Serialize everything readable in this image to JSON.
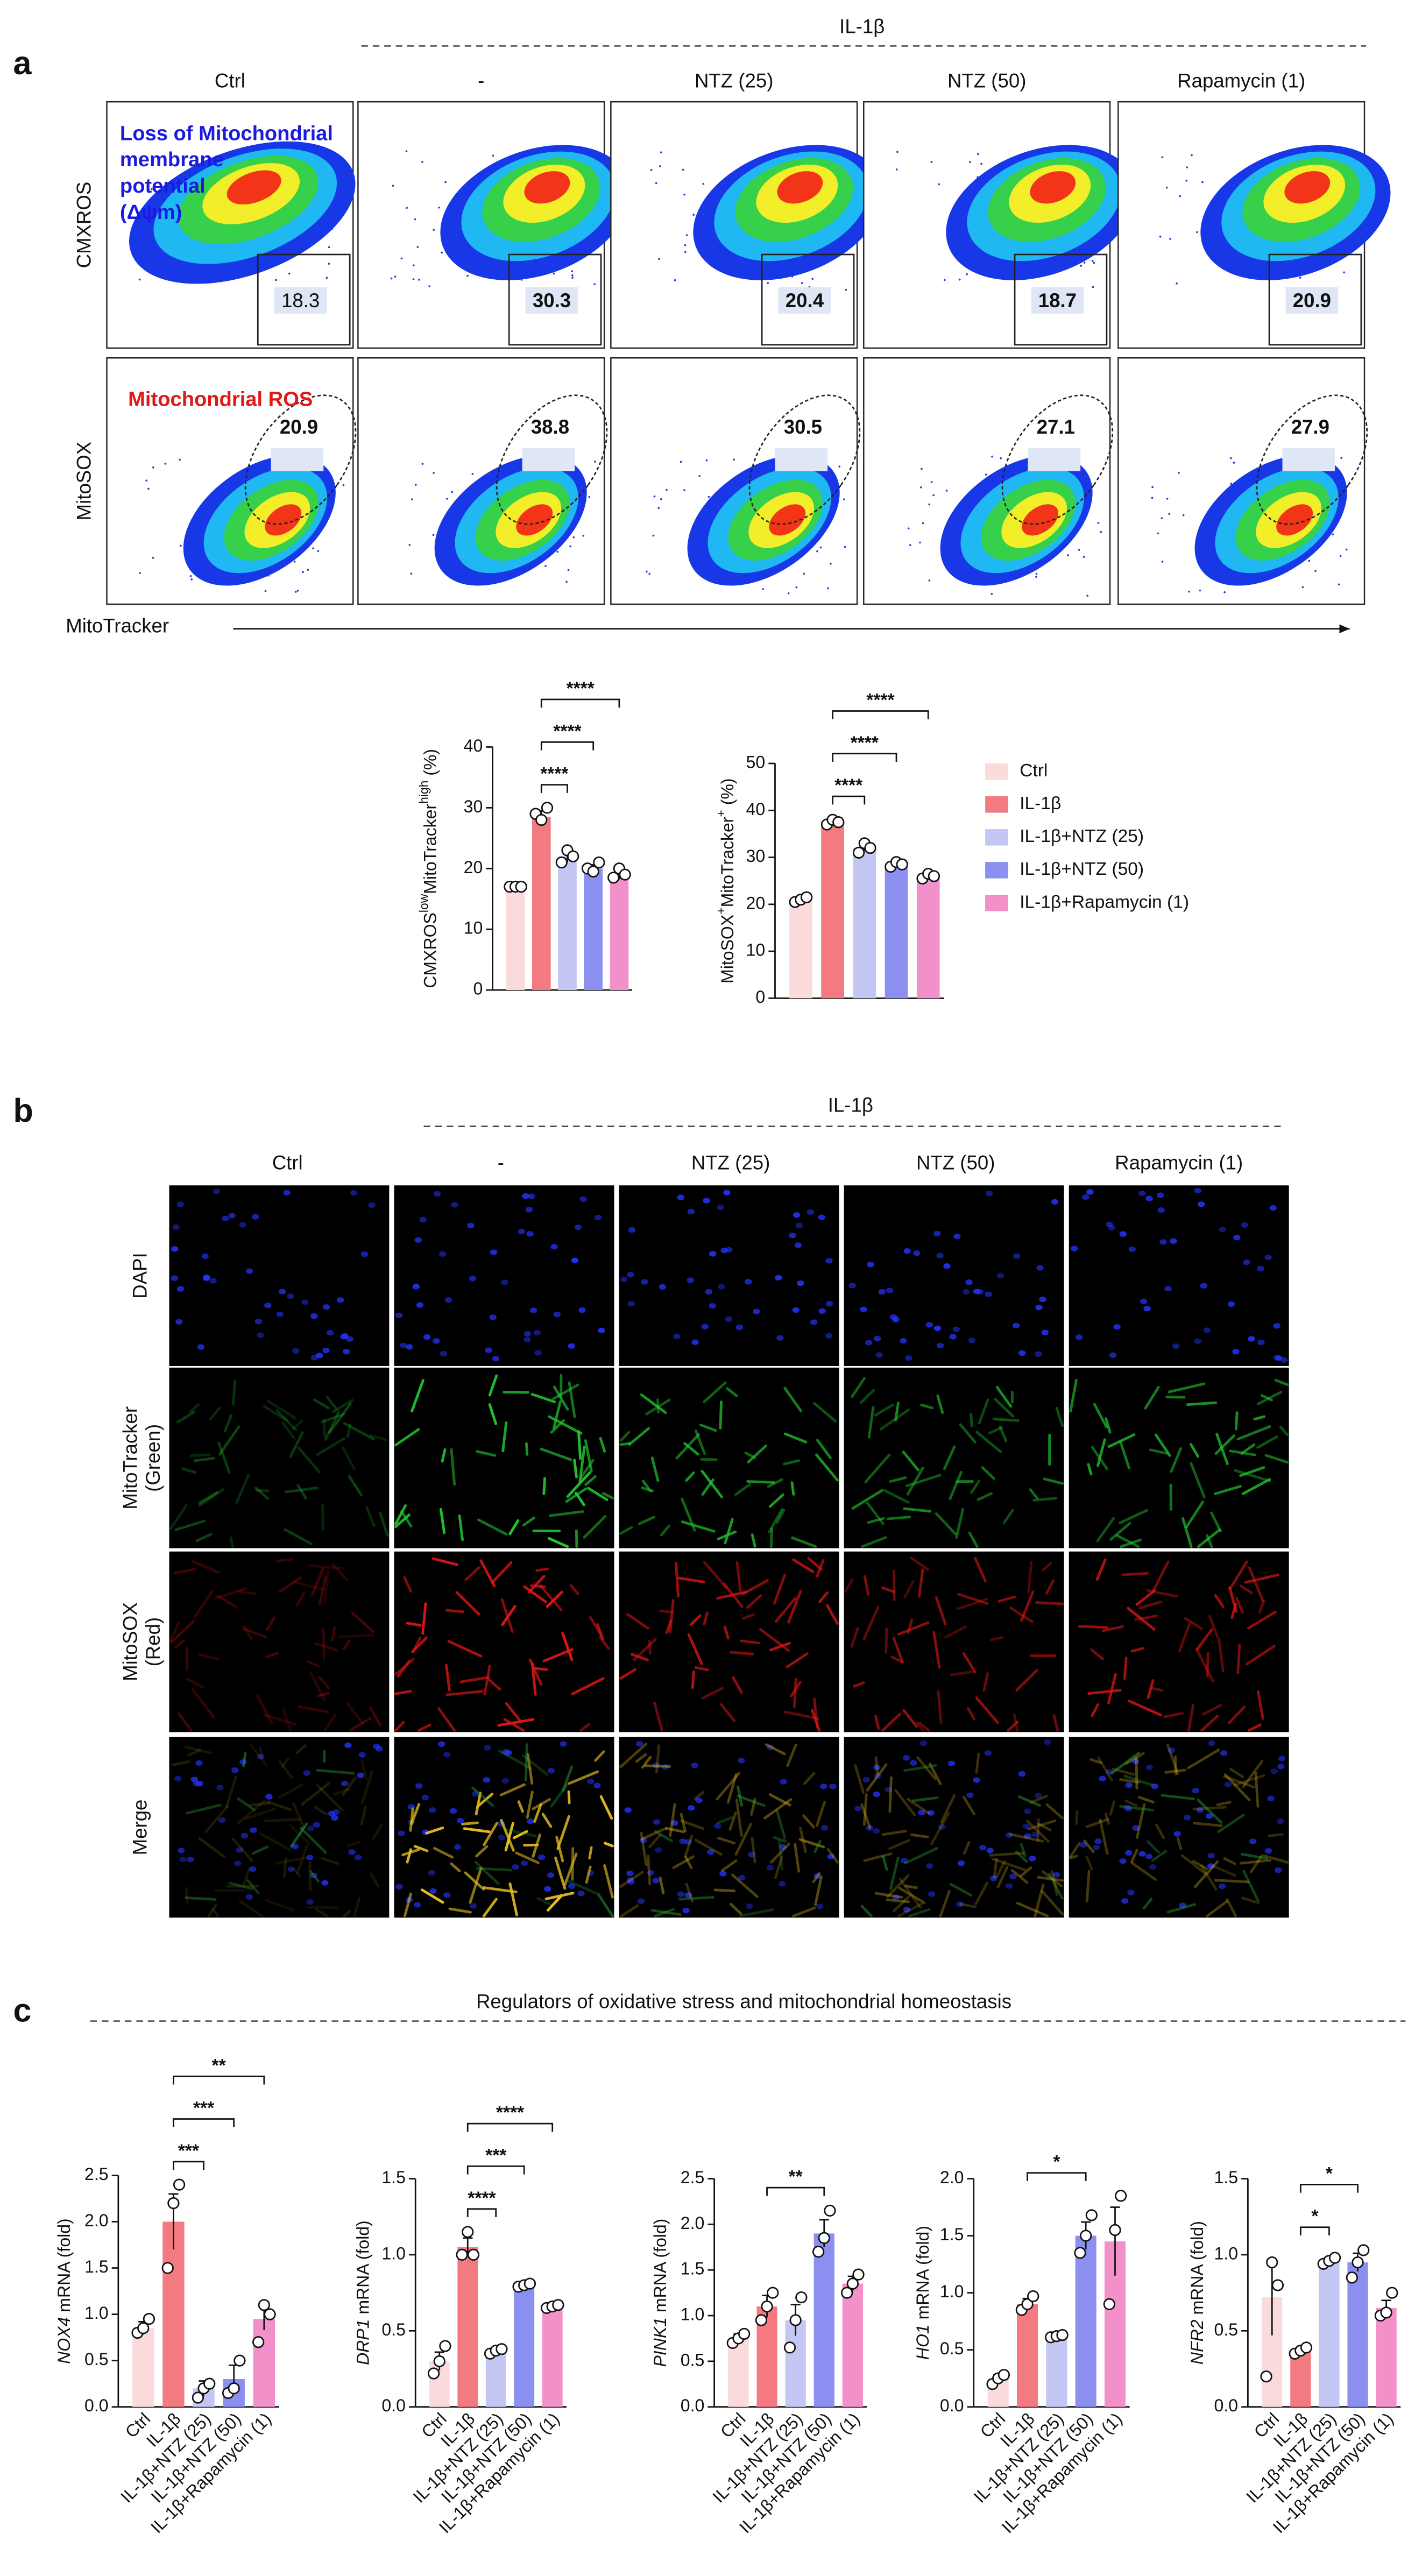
{
  "panels": {
    "a": "a",
    "b": "b",
    "c": "c"
  },
  "flow": {
    "group_header": "IL-1β",
    "columns": [
      "Ctrl",
      "-",
      "NTZ (25)",
      "NTZ (50)",
      "Rapamycin (1)"
    ],
    "rows": [
      {
        "label": "CMXROS",
        "annotation": [
          "Loss of Mitochondrial",
          "membrane",
          "potential",
          "(Δψm)"
        ],
        "gate_values": [
          18.3,
          30.3,
          20.4,
          18.7,
          20.9
        ]
      },
      {
        "label": "MitoSOX",
        "annotation": [
          "Mitochondrial ROS"
        ],
        "gate_values": [
          20.9,
          38.8,
          30.5,
          27.1,
          27.9
        ]
      }
    ],
    "x_label": "MitoTracker"
  },
  "microscopy": {
    "group_header": "IL-1β",
    "columns": [
      "Ctrl",
      "-",
      "NTZ (25)",
      "NTZ (50)",
      "Rapamycin (1)"
    ],
    "rows": [
      [
        "DAPI"
      ],
      [
        "MitoTracker",
        "(Green)"
      ],
      [
        "MitoSOX",
        "(Red)"
      ],
      [
        "Merge"
      ]
    ]
  },
  "section_c_title": "Regulators of oxidative stress and mitochondrial homeostasis",
  "chart_data": [
    {
      "type": "bar",
      "ylabel": [
        {
          "text": "CMXROS"
        },
        {
          "text": "low",
          "sup": true
        },
        {
          "text": "MitoTracker"
        },
        {
          "text": "high",
          "sup": true
        },
        {
          "text": " (%)"
        }
      ],
      "values": [
        17,
        28.5,
        22,
        20,
        19
      ],
      "errors": [
        0.3,
        1,
        1,
        0.6,
        0.8
      ],
      "points": [
        [
          17,
          17,
          17
        ],
        [
          29,
          28,
          30
        ],
        [
          21,
          23,
          22
        ],
        [
          20,
          19.5,
          21
        ],
        [
          18.5,
          20,
          19
        ]
      ],
      "colors": [
        "#fbdadc",
        "#f27a80",
        "#c4c7f4",
        "#8b8ff0",
        "#f290c9"
      ],
      "ylim": [
        0,
        40
      ],
      "yticks": [
        0,
        10,
        20,
        30,
        40
      ],
      "comparisons": [
        {
          "from": 1,
          "to": 2,
          "label": "****"
        },
        {
          "from": 1,
          "to": 3,
          "label": "****"
        },
        {
          "from": 1,
          "to": 4,
          "label": "****"
        }
      ]
    },
    {
      "type": "bar",
      "ylabel": [
        {
          "text": "MitoSOX"
        },
        {
          "text": "+",
          "sup": true
        },
        {
          "text": "MitoTracker"
        },
        {
          "text": "+",
          "sup": true
        },
        {
          "text": " (%)"
        }
      ],
      "categories": [
        "Ctrl",
        "IL-1β",
        "IL-1β+NTZ (25)",
        "IL-1β+NTZ (50)",
        "IL-1β+Rapamycin (1)"
      ],
      "values": [
        21,
        37.5,
        32,
        28.5,
        26
      ],
      "errors": [
        0.5,
        0.6,
        0.7,
        0.7,
        0.5
      ],
      "points": [
        [
          20.5,
          21,
          21.5
        ],
        [
          37,
          38,
          37.5
        ],
        [
          31,
          33,
          32
        ],
        [
          28,
          29,
          28.5
        ],
        [
          25.5,
          26.5,
          26
        ]
      ],
      "colors": [
        "#fbdadc",
        "#f27a80",
        "#c4c7f4",
        "#8b8ff0",
        "#f290c9"
      ],
      "ylim": [
        0,
        50
      ],
      "yticks": [
        0,
        10,
        20,
        30,
        40,
        50
      ],
      "legend": "right",
      "comparisons": [
        {
          "from": 1,
          "to": 2,
          "label": "****"
        },
        {
          "from": 1,
          "to": 3,
          "label": "****"
        },
        {
          "from": 1,
          "to": 4,
          "label": "****"
        }
      ]
    },
    {
      "type": "bar",
      "ylabel": [
        {
          "text": "NOX4",
          "italic": true
        },
        {
          "text": " mRNA (fold)"
        }
      ],
      "categories": [
        "Ctrl",
        "IL-1β",
        "IL-1β+NTZ (25)",
        "IL-1β+NTZ (50)",
        "IL-1β+Rapamycin (1)"
      ],
      "values": [
        0.85,
        2.0,
        0.2,
        0.3,
        0.95
      ],
      "errors": [
        0.07,
        0.3,
        0.08,
        0.15,
        0.12
      ],
      "points": [
        [
          0.8,
          0.85,
          0.95
        ],
        [
          1.5,
          2.2,
          2.4
        ],
        [
          0.1,
          0.2,
          0.25
        ],
        [
          0.15,
          0.2,
          0.5
        ],
        [
          0.7,
          1.1,
          1.0
        ]
      ],
      "colors": [
        "#fbdadc",
        "#f27a80",
        "#c4c7f4",
        "#8b8ff0",
        "#f290c9"
      ],
      "ylim": [
        0,
        2.5
      ],
      "yticks": [
        {
          "value": 0,
          "label": "0.0"
        },
        0.5,
        {
          "value": 1,
          "label": "1.0"
        },
        1.5,
        {
          "value": 2,
          "label": "2.0"
        },
        2.5
      ],
      "comparisons": [
        {
          "from": 1,
          "to": 2,
          "label": "***"
        },
        {
          "from": 1,
          "to": 3,
          "label": "***"
        },
        {
          "from": 1,
          "to": 4,
          "label": "**"
        }
      ]
    },
    {
      "type": "bar",
      "ylabel": [
        {
          "text": "DRP1",
          "italic": true
        },
        {
          "text": " mRNA (fold)"
        }
      ],
      "categories": [
        "Ctrl",
        "IL-1β",
        "IL-1β+NTZ (25)",
        "IL-1β+NTZ (50)",
        "IL-1β+Rapamycin (1)"
      ],
      "values": [
        0.3,
        1.05,
        0.37,
        0.8,
        0.66
      ],
      "errors": [
        0.06,
        0.06,
        0.02,
        0.02,
        0.02
      ],
      "points": [
        [
          0.22,
          0.3,
          0.4
        ],
        [
          1.0,
          1.15,
          1.0
        ],
        [
          0.35,
          0.37,
          0.38
        ],
        [
          0.79,
          0.8,
          0.81
        ],
        [
          0.65,
          0.66,
          0.67
        ]
      ],
      "colors": [
        "#fbdadc",
        "#f27a80",
        "#c4c7f4",
        "#8b8ff0",
        "#f290c9"
      ],
      "ylim": [
        0,
        1.5
      ],
      "yticks": [
        {
          "value": 0,
          "label": "0.0"
        },
        0.5,
        {
          "value": 1,
          "label": "1.0"
        },
        1.5
      ],
      "comparisons": [
        {
          "from": 1,
          "to": 2,
          "label": "****"
        },
        {
          "from": 1,
          "to": 3,
          "label": "***"
        },
        {
          "from": 1,
          "to": 4,
          "label": "****"
        }
      ]
    },
    {
      "type": "bar",
      "ylabel": [
        {
          "text": "PINK1",
          "italic": true
        },
        {
          "text": " mRNA (fold)"
        }
      ],
      "categories": [
        "Ctrl",
        "IL-1β",
        "IL-1β+NTZ (25)",
        "IL-1β+NTZ (50)",
        "IL-1β+Rapamycin (1)"
      ],
      "values": [
        0.75,
        1.1,
        0.95,
        1.9,
        1.35
      ],
      "errors": [
        0.05,
        0.12,
        0.17,
        0.15,
        0.08
      ],
      "points": [
        [
          0.7,
          0.75,
          0.8
        ],
        [
          0.95,
          1.1,
          1.25
        ],
        [
          0.65,
          0.95,
          1.2
        ],
        [
          1.7,
          1.85,
          2.15
        ],
        [
          1.25,
          1.35,
          1.45
        ]
      ],
      "colors": [
        "#fbdadc",
        "#f27a80",
        "#c4c7f4",
        "#8b8ff0",
        "#f290c9"
      ],
      "ylim": [
        0,
        2.5
      ],
      "yticks": [
        {
          "value": 0,
          "label": "0.0"
        },
        0.5,
        {
          "value": 1,
          "label": "1.0"
        },
        1.5,
        {
          "value": 2,
          "label": "2.0"
        },
        2.5
      ],
      "comparisons": [
        {
          "from": 1,
          "to": 3,
          "label": "**"
        }
      ]
    },
    {
      "type": "bar",
      "ylabel": [
        {
          "text": "HO1",
          "italic": true
        },
        {
          "text": " mRNA (fold)"
        }
      ],
      "categories": [
        "Ctrl",
        "IL-1β",
        "IL-1β+NTZ (25)",
        "IL-1β+NTZ (50)",
        "IL-1β+Rapamycin (1)"
      ],
      "values": [
        0.25,
        0.9,
        0.62,
        1.5,
        1.45
      ],
      "errors": [
        0.03,
        0.05,
        0.01,
        0.12,
        0.3
      ],
      "points": [
        [
          0.2,
          0.25,
          0.28
        ],
        [
          0.85,
          0.9,
          0.97
        ],
        [
          0.61,
          0.62,
          0.63
        ],
        [
          1.35,
          1.5,
          1.68
        ],
        [
          0.9,
          1.55,
          1.85
        ]
      ],
      "colors": [
        "#fbdadc",
        "#f27a80",
        "#c4c7f4",
        "#8b8ff0",
        "#f290c9"
      ],
      "ylim": [
        0,
        2
      ],
      "yticks": [
        {
          "value": 0,
          "label": "0.0"
        },
        0.5,
        {
          "value": 1,
          "label": "1.0"
        },
        1.5,
        {
          "value": 2,
          "label": "2.0"
        }
      ],
      "comparisons": [
        {
          "from": 1,
          "to": 3,
          "label": "*"
        }
      ]
    },
    {
      "type": "bar",
      "ylabel": [
        {
          "text": "NFR2",
          "italic": true
        },
        {
          "text": " mRNA (fold)"
        }
      ],
      "categories": [
        "Ctrl",
        "IL-1β",
        "IL-1β+NTZ (25)",
        "IL-1β+NTZ (50)",
        "IL-1β+Rapamycin (1)"
      ],
      "values": [
        0.72,
        0.37,
        0.96,
        0.95,
        0.65
      ],
      "errors": [
        0.25,
        0.02,
        0.02,
        0.06,
        0.05
      ],
      "points": [
        [
          0.2,
          0.95,
          0.8
        ],
        [
          0.35,
          0.37,
          0.39
        ],
        [
          0.94,
          0.96,
          0.98
        ],
        [
          0.85,
          0.95,
          1.03
        ],
        [
          0.6,
          0.62,
          0.75
        ]
      ],
      "colors": [
        "#fbdadc",
        "#f27a80",
        "#c4c7f4",
        "#8b8ff0",
        "#f290c9"
      ],
      "ylim": [
        0,
        1.5
      ],
      "yticks": [
        {
          "value": 0,
          "label": "0.0"
        },
        0.5,
        {
          "value": 1,
          "label": "1.0"
        },
        1.5
      ],
      "comparisons": [
        {
          "from": 1,
          "to": 2,
          "label": "*"
        },
        {
          "from": 1,
          "to": 3,
          "label": "*"
        }
      ]
    }
  ]
}
